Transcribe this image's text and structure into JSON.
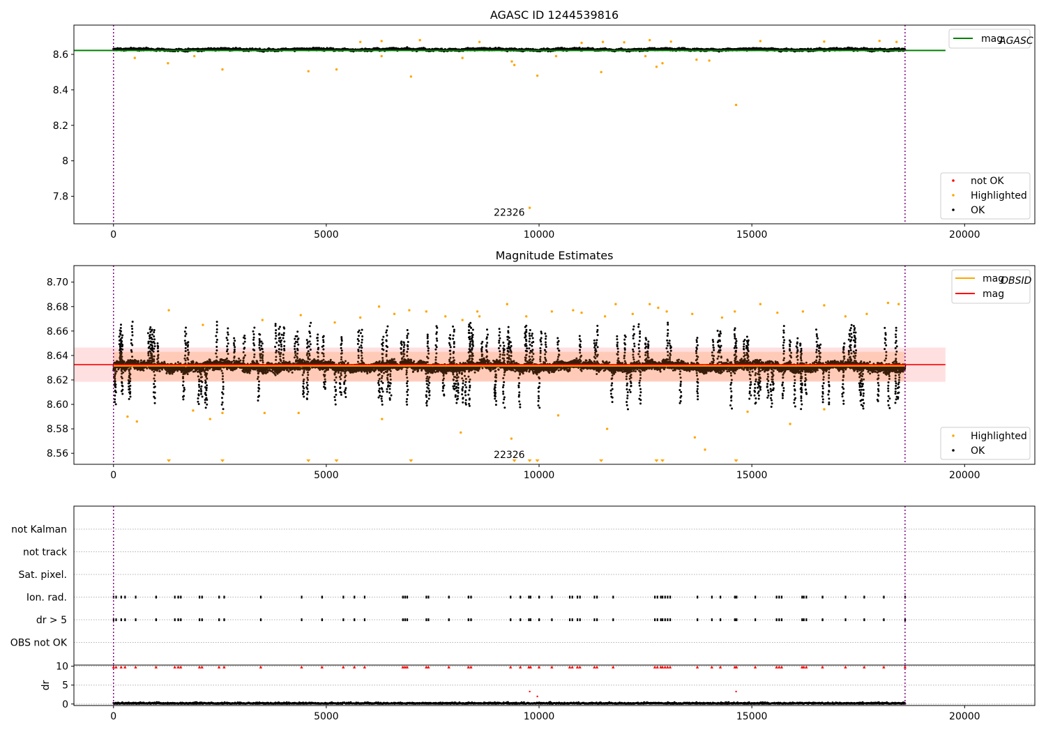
{
  "chart_data": [
    {
      "type": "scatter",
      "title": "AGASC ID 1244539816",
      "x_ticks": [
        0,
        5000,
        10000,
        15000,
        20000
      ],
      "y_ticks": [
        7.8,
        8.0,
        8.2,
        8.4,
        8.6
      ],
      "xlim": [
        -930,
        21650
      ],
      "ylim": [
        7.645,
        8.765
      ],
      "obsid_label": {
        "text": "22326",
        "x": 9300,
        "y": 7.69
      },
      "vlines": [
        0,
        18600
      ],
      "mag_agasc": 8.622,
      "mag_agasc_xrange": [
        -930,
        19550
      ],
      "band": {
        "y_center": 8.627,
        "y_half": 0.022,
        "y_noise": 0.01,
        "x_start": 0,
        "x_end": 18600,
        "n": 3500,
        "seed": 7
      },
      "highlighted_outliers": [
        {
          "x": 1280,
          "y": 8.55
        },
        {
          "x": 2560,
          "y": 8.515
        },
        {
          "x": 4580,
          "y": 8.505
        },
        {
          "x": 5240,
          "y": 8.515
        },
        {
          "x": 6990,
          "y": 8.475
        },
        {
          "x": 9360,
          "y": 8.56
        },
        {
          "x": 9420,
          "y": 8.54
        },
        {
          "x": 9960,
          "y": 8.48
        },
        {
          "x": 11460,
          "y": 8.5
        },
        {
          "x": 12760,
          "y": 8.53
        },
        {
          "x": 12900,
          "y": 8.55
        },
        {
          "x": 14630,
          "y": 8.315
        },
        {
          "x": 9780,
          "y": 7.735
        },
        {
          "x": 1900,
          "y": 8.59
        },
        {
          "x": 8200,
          "y": 8.58
        },
        {
          "x": 13700,
          "y": 8.57
        },
        {
          "x": 14000,
          "y": 8.565
        },
        {
          "x": 12500,
          "y": 8.59
        },
        {
          "x": 500,
          "y": 8.58
        },
        {
          "x": 6300,
          "y": 8.59
        },
        {
          "x": 10400,
          "y": 8.59
        }
      ],
      "highlighted_above": [
        {
          "x": 5800,
          "y": 8.67
        },
        {
          "x": 6300,
          "y": 8.675
        },
        {
          "x": 7200,
          "y": 8.68
        },
        {
          "x": 8600,
          "y": 8.67
        },
        {
          "x": 11000,
          "y": 8.665
        },
        {
          "x": 11500,
          "y": 8.67
        },
        {
          "x": 12000,
          "y": 8.668
        },
        {
          "x": 12600,
          "y": 8.68
        },
        {
          "x": 13100,
          "y": 8.672
        },
        {
          "x": 15200,
          "y": 8.675
        },
        {
          "x": 16700,
          "y": 8.672
        },
        {
          "x": 18000,
          "y": 8.676
        },
        {
          "x": 18400,
          "y": 8.67
        }
      ],
      "legend_top": [
        {
          "label": "mag",
          "sub": "AGASC",
          "color": "#008000",
          "kind": "line"
        }
      ],
      "legend_bottom": [
        {
          "label": "not OK",
          "color": "#ff0000",
          "kind": "dot"
        },
        {
          "label": "Highlighted",
          "color": "#ffa500",
          "kind": "dot"
        },
        {
          "label": "OK",
          "color": "#000000",
          "kind": "dot"
        }
      ]
    },
    {
      "type": "scatter",
      "title": "Magnitude Estimates",
      "x_ticks": [
        0,
        5000,
        10000,
        15000,
        20000
      ],
      "y_ticks": [
        8.56,
        8.58,
        8.6,
        8.62,
        8.64,
        8.66,
        8.68,
        8.7
      ],
      "y_tick_labels": [
        "8.56",
        "8.58",
        "8.60",
        "8.62",
        "8.64",
        "8.66",
        "8.68",
        "8.70"
      ],
      "xlim": [
        -930,
        21650
      ],
      "ylim": [
        8.551,
        8.7135
      ],
      "obsid_label": {
        "text": "22326",
        "x": 9300,
        "y": 8.556
      },
      "vlines": [
        0,
        18600
      ],
      "mag": 8.6325,
      "mag_band": [
        8.6185,
        8.6465
      ],
      "mag_xrange": [
        -930,
        19550
      ],
      "obsid_mag": {
        "y": 8.6315,
        "x_start": 0,
        "x_end": 18600
      },
      "band": {
        "y_center": 8.631,
        "y_half": 0.012,
        "y_noise": 0.006,
        "x_start": 0,
        "x_end": 18600,
        "n": 7500,
        "seed": 11
      },
      "spikes": {
        "n": 160,
        "seed": 23,
        "y_low": 8.596,
        "y_high": 8.668
      },
      "highlighted_outliers": [
        {
          "x": 330,
          "y": 8.59
        },
        {
          "x": 550,
          "y": 8.586
        },
        {
          "x": 1870,
          "y": 8.595
        },
        {
          "x": 2270,
          "y": 8.588
        },
        {
          "x": 2560,
          "y": 8.593
        },
        {
          "x": 3550,
          "y": 8.593
        },
        {
          "x": 4350,
          "y": 8.593
        },
        {
          "x": 6310,
          "y": 8.588
        },
        {
          "x": 8160,
          "y": 8.577
        },
        {
          "x": 9350,
          "y": 8.572
        },
        {
          "x": 10450,
          "y": 8.591
        },
        {
          "x": 11600,
          "y": 8.58
        },
        {
          "x": 13660,
          "y": 8.573
        },
        {
          "x": 13900,
          "y": 8.563
        },
        {
          "x": 14900,
          "y": 8.594
        },
        {
          "x": 15900,
          "y": 8.584
        },
        {
          "x": 16700,
          "y": 8.596
        }
      ],
      "highlighted_above": [
        {
          "x": 1300,
          "y": 8.677
        },
        {
          "x": 2100,
          "y": 8.665
        },
        {
          "x": 3500,
          "y": 8.669
        },
        {
          "x": 4400,
          "y": 8.673
        },
        {
          "x": 5200,
          "y": 8.667
        },
        {
          "x": 5800,
          "y": 8.671
        },
        {
          "x": 6240,
          "y": 8.68
        },
        {
          "x": 6600,
          "y": 8.674
        },
        {
          "x": 6950,
          "y": 8.677
        },
        {
          "x": 7350,
          "y": 8.676
        },
        {
          "x": 7800,
          "y": 8.672
        },
        {
          "x": 8200,
          "y": 8.669
        },
        {
          "x": 8550,
          "y": 8.676
        },
        {
          "x": 8600,
          "y": 8.672
        },
        {
          "x": 9250,
          "y": 8.682
        },
        {
          "x": 9700,
          "y": 8.672
        },
        {
          "x": 10300,
          "y": 8.676
        },
        {
          "x": 10800,
          "y": 8.677
        },
        {
          "x": 11000,
          "y": 8.675
        },
        {
          "x": 11550,
          "y": 8.672
        },
        {
          "x": 11800,
          "y": 8.682
        },
        {
          "x": 12200,
          "y": 8.674
        },
        {
          "x": 12600,
          "y": 8.682
        },
        {
          "x": 12800,
          "y": 8.679
        },
        {
          "x": 13000,
          "y": 8.676
        },
        {
          "x": 13600,
          "y": 8.674
        },
        {
          "x": 14300,
          "y": 8.671
        },
        {
          "x": 14600,
          "y": 8.676
        },
        {
          "x": 15200,
          "y": 8.682
        },
        {
          "x": 15600,
          "y": 8.675
        },
        {
          "x": 16200,
          "y": 8.676
        },
        {
          "x": 16700,
          "y": 8.681
        },
        {
          "x": 17200,
          "y": 8.672
        },
        {
          "x": 17700,
          "y": 8.674
        },
        {
          "x": 18200,
          "y": 8.683
        },
        {
          "x": 18450,
          "y": 8.682
        }
      ],
      "triangles": [
        1300,
        2560,
        4580,
        5240,
        6990,
        9420,
        9780,
        9960,
        11460,
        12760,
        12900,
        14630
      ],
      "legend_top": [
        {
          "label": "mag",
          "sub": "OBSID",
          "color": "#ffa500",
          "kind": "line"
        },
        {
          "label": "mag",
          "sub": "",
          "color": "#ff0000",
          "kind": "line"
        }
      ],
      "legend_bottom": [
        {
          "label": "Highlighted",
          "color": "#ffa500",
          "kind": "dot"
        },
        {
          "label": "OK",
          "color": "#000000",
          "kind": "dot"
        }
      ]
    },
    {
      "type": "scatter",
      "title": "",
      "x_ticks": [
        0,
        5000,
        10000,
        15000,
        20000
      ],
      "xlim": [
        -930,
        21650
      ],
      "flag_rows": [
        "not Kalman",
        "not track",
        "Sat. pixel.",
        "Ion. rad.",
        "dr > 5",
        "OBS not OK"
      ],
      "flag_events": [
        0,
        60,
        180,
        270,
        520,
        1000,
        1440,
        1520,
        1580,
        2020,
        2080,
        2480,
        2600,
        3460,
        4420,
        4900,
        5400,
        5660,
        5900,
        6800,
        6850,
        6900,
        7350,
        7400,
        7880,
        8340,
        8400,
        9330,
        9560,
        9760,
        9800,
        10000,
        10300,
        10720,
        10780,
        10900,
        10960,
        11300,
        11360,
        11740,
        12720,
        12780,
        12860,
        12900,
        12960,
        13020,
        13080,
        13720,
        14060,
        14260,
        14600,
        14640,
        15080,
        15580,
        15640,
        15700,
        16180,
        16220,
        16280,
        16660,
        17200,
        17640,
        18100,
        18600
      ],
      "dr_ylabel": "dr",
      "dr_ticks": [
        0,
        5,
        10
      ],
      "dr_ylim": [
        -0.4,
        10.3
      ],
      "dr_outliers": [
        {
          "x": 9780,
          "y": 3.3
        },
        {
          "x": 14630,
          "y": 3.3
        },
        {
          "x": 9960,
          "y": 2.0
        }
      ],
      "vlines": [
        0,
        18600
      ]
    }
  ]
}
